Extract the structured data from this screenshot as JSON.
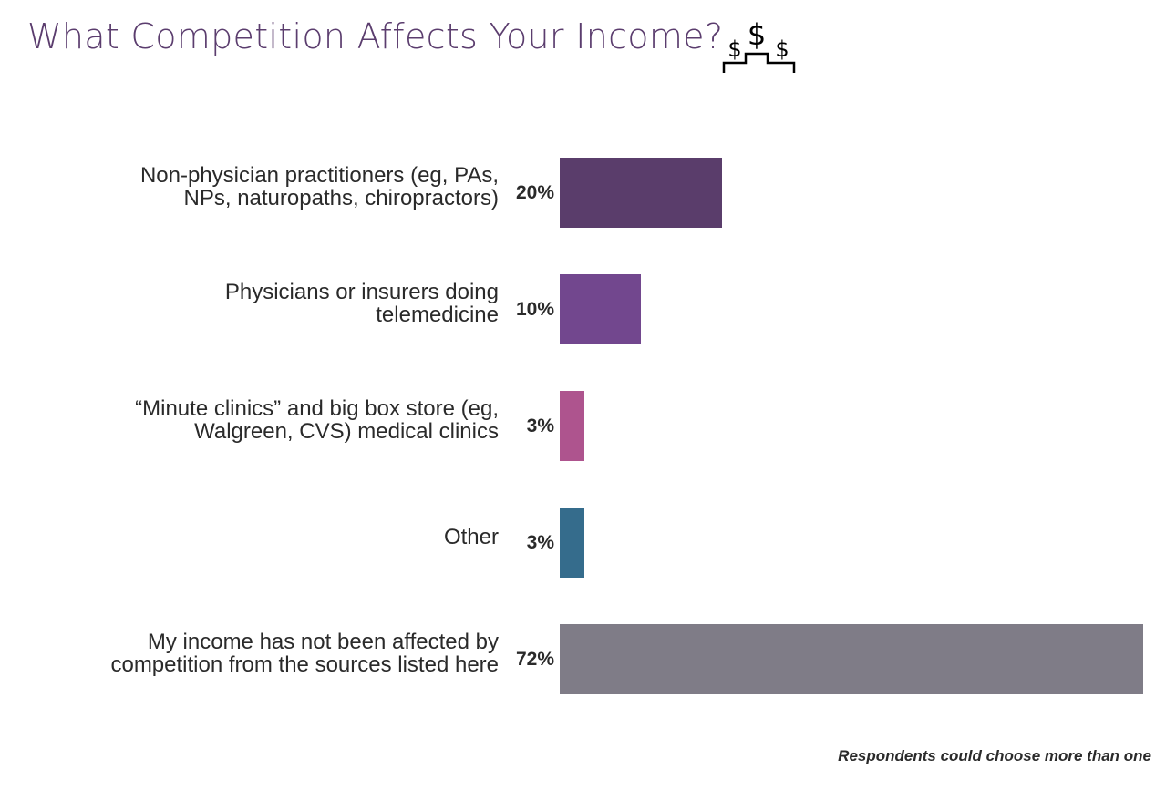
{
  "title": "What Competition Affects Your Income?",
  "icon": "dollar-podium-icon",
  "note": "Respondents could choose more than one",
  "chart_data": {
    "type": "bar",
    "orientation": "horizontal",
    "categories": [
      "Non-physician practitioners (eg, PAs, NPs, naturopaths, chiropractors)",
      "Physicians or insurers doing telemedicine",
      "“Minute clinics” and big box store (eg, Walgreen, CVS) medical clinics",
      "Other",
      "My income has not been affected by competition from the sources listed here"
    ],
    "label_lines": [
      [
        "Non-physician practitioners (eg, PAs,",
        "NPs, naturopaths, chiropractors)"
      ],
      [
        "Physicians or insurers doing",
        "telemedicine"
      ],
      [
        "“Minute clinics” and big box store (eg,",
        "Walgreen, CVS) medical clinics"
      ],
      [
        "Other"
      ],
      [
        "My income has not been affected by",
        "competition from the sources listed here"
      ]
    ],
    "values": [
      20,
      10,
      3,
      3,
      72
    ],
    "data_labels": [
      "20%",
      "10%",
      "3%",
      "3%",
      "72%"
    ],
    "colors": [
      "#5a3d6b",
      "#72478e",
      "#ae548e",
      "#356c8c",
      "#7f7c87"
    ],
    "unit": "%",
    "grid": false,
    "legend": "none"
  }
}
